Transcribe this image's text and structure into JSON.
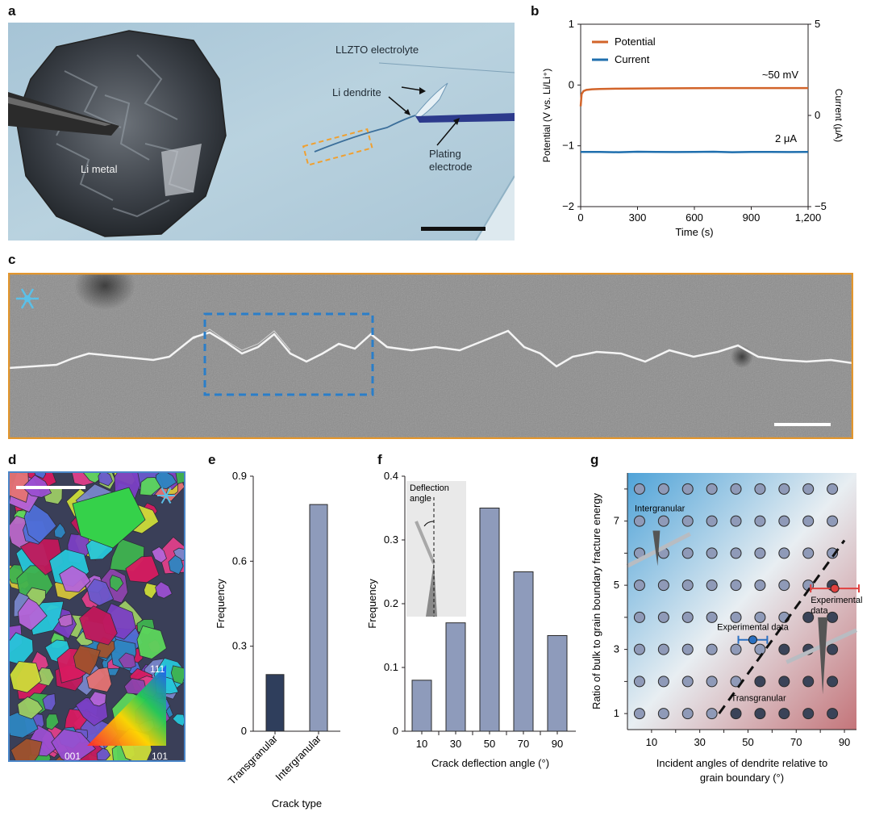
{
  "panel_labels": {
    "a": "a",
    "b": "b",
    "c": "c",
    "d": "d",
    "e": "e",
    "f": "f",
    "g": "g"
  },
  "panel_a": {
    "li_metal": "Li metal",
    "llzto": "LLZTO electrolyte",
    "li_dendrite": "Li dendrite",
    "plating_electrode_line1": "Plating",
    "plating_electrode_line2": "electrode"
  },
  "panel_d": {
    "ipf_111": "111",
    "ipf_001": "001",
    "ipf_101": "101"
  },
  "colors": {
    "potential": "#d2642a",
    "current": "#1f6fae",
    "bar_light": "#8e9bbb",
    "bar_dark": "#2f3e5c",
    "frame_orange": "#e2962e",
    "box_blue": "#2a7ec9",
    "frame_d_blue": "#4a86c8",
    "snowflake": "#5bc0e8"
  },
  "chart_data": [
    {
      "id": "b",
      "type": "line",
      "xlabel": "Time (s)",
      "ylabel_left": "Potential (V vs. Li/Li⁺)",
      "ylabel_right": "Current (μA)",
      "xlim": [
        0,
        1200
      ],
      "ylim_left": [
        -2,
        1
      ],
      "ylim_right": [
        -5,
        5
      ],
      "x_ticks": [
        0,
        300,
        600,
        900,
        1200
      ],
      "x_tick_labels": [
        "0",
        "300",
        "600",
        "900",
        "1,200"
      ],
      "y_left_ticks": [
        -2,
        -1,
        0,
        1
      ],
      "y_left_tick_labels": [
        "−2",
        "−1",
        "0",
        "1"
      ],
      "y_right_ticks": [
        -5,
        0,
        5
      ],
      "y_right_tick_labels": [
        "−5",
        "0",
        "5"
      ],
      "legend": [
        "Potential",
        "Current"
      ],
      "legend_position": "top-left",
      "annotations": [
        "~50 mV",
        "2 μA"
      ],
      "series": [
        {
          "name": "Potential",
          "axis": "left",
          "x": [
            0,
            5,
            15,
            30,
            60,
            100,
            200,
            400,
            600,
            800,
            1000,
            1200
          ],
          "y": [
            -0.35,
            -0.15,
            -0.1,
            -0.08,
            -0.07,
            -0.065,
            -0.06,
            -0.055,
            -0.052,
            -0.05,
            -0.05,
            -0.05
          ]
        },
        {
          "name": "Current",
          "axis": "right",
          "x": [
            0,
            100,
            200,
            300,
            400,
            500,
            600,
            700,
            800,
            900,
            1000,
            1100,
            1200
          ],
          "y": [
            -2,
            -2,
            -2.02,
            -1.99,
            -2,
            -2.01,
            -2,
            -1.99,
            -2.02,
            -2,
            -2,
            -2.01,
            -2
          ]
        }
      ]
    },
    {
      "id": "e",
      "type": "bar",
      "categories": [
        "Transgranular",
        "Intergranular"
      ],
      "values": [
        0.2,
        0.8
      ],
      "xlabel": "Crack type",
      "ylabel": "Frequency",
      "ylim": [
        0,
        0.9
      ],
      "y_ticks": [
        0,
        0.3,
        0.6,
        0.9
      ],
      "y_tick_labels": [
        "0",
        "0.3",
        "0.6",
        "0.9"
      ]
    },
    {
      "id": "f",
      "type": "bar",
      "categories": [
        "10",
        "30",
        "50",
        "70",
        "90"
      ],
      "values": [
        0.08,
        0.17,
        0.35,
        0.25,
        0.15
      ],
      "xlabel": "Crack deflection angle (°)",
      "ylabel": "Frequency",
      "ylim": [
        0,
        0.4
      ],
      "y_ticks": [
        0,
        0.1,
        0.2,
        0.3,
        0.4
      ],
      "y_tick_labels": [
        "0",
        "0.1",
        "0.2",
        "0.3",
        "0.4"
      ],
      "inset_label_line1": "Deflection",
      "inset_label_line2": "angle"
    },
    {
      "id": "g",
      "type": "scatter",
      "xlabel_line1": "Incident angles of dendrite relative to",
      "xlabel_line2": "grain boundary (°)",
      "ylabel": "Ratio of bulk to grain boundary fracture energy",
      "x_ticks": [
        10,
        30,
        50,
        70,
        90
      ],
      "y_ticks": [
        1,
        3,
        5,
        7
      ],
      "grid_x": [
        10,
        20,
        30,
        40,
        50,
        60,
        70,
        80,
        90
      ],
      "grid_y": [
        1,
        2,
        3,
        4,
        5,
        6,
        7,
        8
      ],
      "grid_points_x": [
        5,
        15,
        25,
        35,
        45,
        55,
        65,
        75,
        85
      ],
      "xlim": [
        0,
        95
      ],
      "ylim": [
        0.5,
        8.5
      ],
      "region_labels": [
        "Intergranular",
        "Transgranular"
      ],
      "boundary_line": {
        "x": [
          38,
          90
        ],
        "y": [
          1,
          6.4
        ]
      },
      "experimental": [
        {
          "label": "Experimental data",
          "x": 52,
          "y": 3.3,
          "xerr": 6,
          "color": "#2a6fc0"
        },
        {
          "label_line1": "Experimental",
          "label_line2": "data",
          "x": 86,
          "y": 4.9,
          "xerr": 10,
          "color": "#e0413f"
        }
      ]
    }
  ]
}
